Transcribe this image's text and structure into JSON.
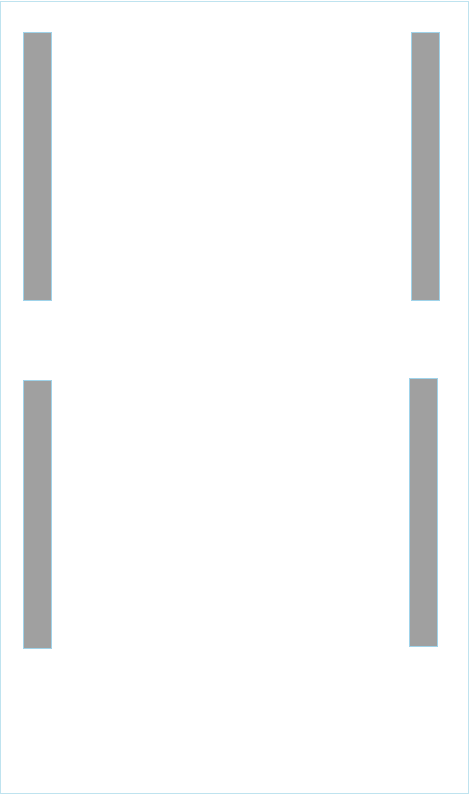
{
  "screen": {
    "colors": {
      "background": "#ffffff",
      "frame_border": "#bfe3ef",
      "bar_fill": "#a0a0a0",
      "bar_border": "#9fd3ea"
    },
    "bars": [
      {
        "id": "top-left"
      },
      {
        "id": "top-right"
      },
      {
        "id": "bottom-left"
      },
      {
        "id": "bottom-right"
      }
    ]
  }
}
